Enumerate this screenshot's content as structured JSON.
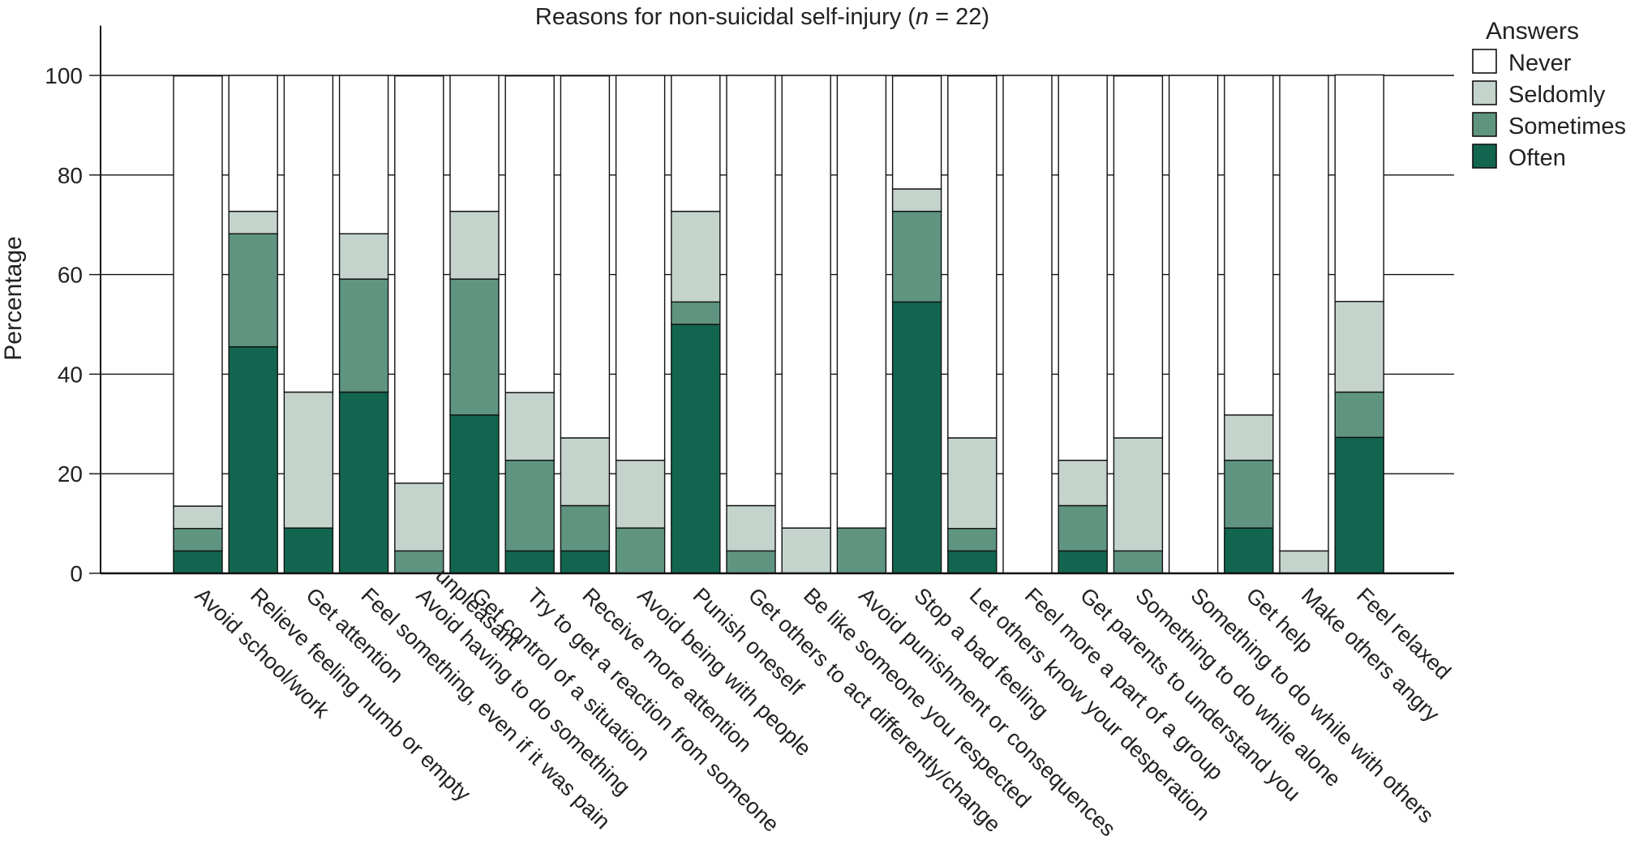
{
  "chart_data": {
    "type": "bar",
    "stacked": true,
    "title": "Reasons for non-suicidal self-injury (n = 22)",
    "title_parts": {
      "prefix": "Reasons for non-suicidal self-injury (",
      "italic": "n",
      "suffix": " = 22)"
    },
    "ylabel": "Percentage",
    "xlabel": "",
    "ylim": [
      0,
      110
    ],
    "yticks": [
      "0",
      "20",
      "40",
      "60",
      "80",
      "100"
    ],
    "grid": true,
    "legend": {
      "title": "Answers",
      "placement": "top-right"
    },
    "categories": [
      "Avoid school/work",
      "Relieve feeling numb or empty",
      "Get attention",
      "Feel something, even if it was pain",
      "Avoid having to do something unpleasant",
      "Get control of a situation",
      "Try to get a reaction from someone",
      "Receive more attention",
      "Avoid being with people",
      "Punish oneself",
      "Get others to act differently/change",
      "Be like someone you respected",
      "Avoid punishment or consequences",
      "Stop a  bad feeling",
      "Let others know your desperation",
      "Feel more a part of a group",
      "Get parents to understand you",
      "Something to do while alone",
      "Something to do while with others",
      "Get help",
      "Make others angry",
      "Feel relaxed"
    ],
    "category_label_lines": [
      [
        "Avoid school/work"
      ],
      [
        "Relieve feeling numb or empty"
      ],
      [
        "Get attention"
      ],
      [
        "Feel something, even if it was pain"
      ],
      [
        "unpleasant",
        "Avoid having to do something"
      ],
      [
        "Get control of a situation"
      ],
      [
        "Try to get a reaction from someone"
      ],
      [
        "Receive more attention"
      ],
      [
        "Avoid being with people"
      ],
      [
        "Punish oneself"
      ],
      [
        "Get others to act differently/change"
      ],
      [
        "Be like someone you respected"
      ],
      [
        "Avoid punishment or consequences"
      ],
      [
        "Stop a  bad feeling"
      ],
      [
        "Let others know your desperation"
      ],
      [
        "Feel more a part of a group"
      ],
      [
        "Get parents to understand you"
      ],
      [
        "Something to do while alone"
      ],
      [
        "Something to do while with others"
      ],
      [
        "Get help"
      ],
      [
        "Make others angry"
      ],
      [
        "Feel relaxed"
      ]
    ],
    "series": [
      {
        "name": "Often",
        "color": "#12654e",
        "values": [
          4.5,
          45.5,
          9.1,
          36.4,
          0,
          31.8,
          4.5,
          4.5,
          0,
          50.0,
          0,
          0,
          0,
          54.5,
          4.5,
          0,
          4.5,
          0,
          0,
          9.1,
          0,
          27.3
        ]
      },
      {
        "name": "Sometimes",
        "color": "#5f9580",
        "values": [
          4.5,
          22.7,
          0,
          22.7,
          4.5,
          27.3,
          18.2,
          9.1,
          9.1,
          4.5,
          4.5,
          0,
          9.1,
          18.2,
          4.5,
          0,
          9.1,
          4.5,
          0,
          13.6,
          0,
          9.1
        ]
      },
      {
        "name": "Seldomly",
        "color": "#c4d3cb",
        "values": [
          4.5,
          4.5,
          27.3,
          9.1,
          13.6,
          13.6,
          13.6,
          13.6,
          13.6,
          18.2,
          9.1,
          9.1,
          0,
          4.5,
          18.2,
          0,
          9.1,
          22.7,
          0,
          9.1,
          4.5,
          18.2
        ]
      },
      {
        "name": "Never",
        "color": "#ffffff",
        "values": [
          86.4,
          27.3,
          63.6,
          31.8,
          81.8,
          27.3,
          63.6,
          72.7,
          77.3,
          27.3,
          86.4,
          90.9,
          90.9,
          22.7,
          72.7,
          100,
          77.3,
          72.7,
          100,
          68.2,
          95.5,
          45.5
        ]
      }
    ],
    "legend_order": [
      "Never",
      "Seldomly",
      "Sometimes",
      "Often"
    ]
  }
}
